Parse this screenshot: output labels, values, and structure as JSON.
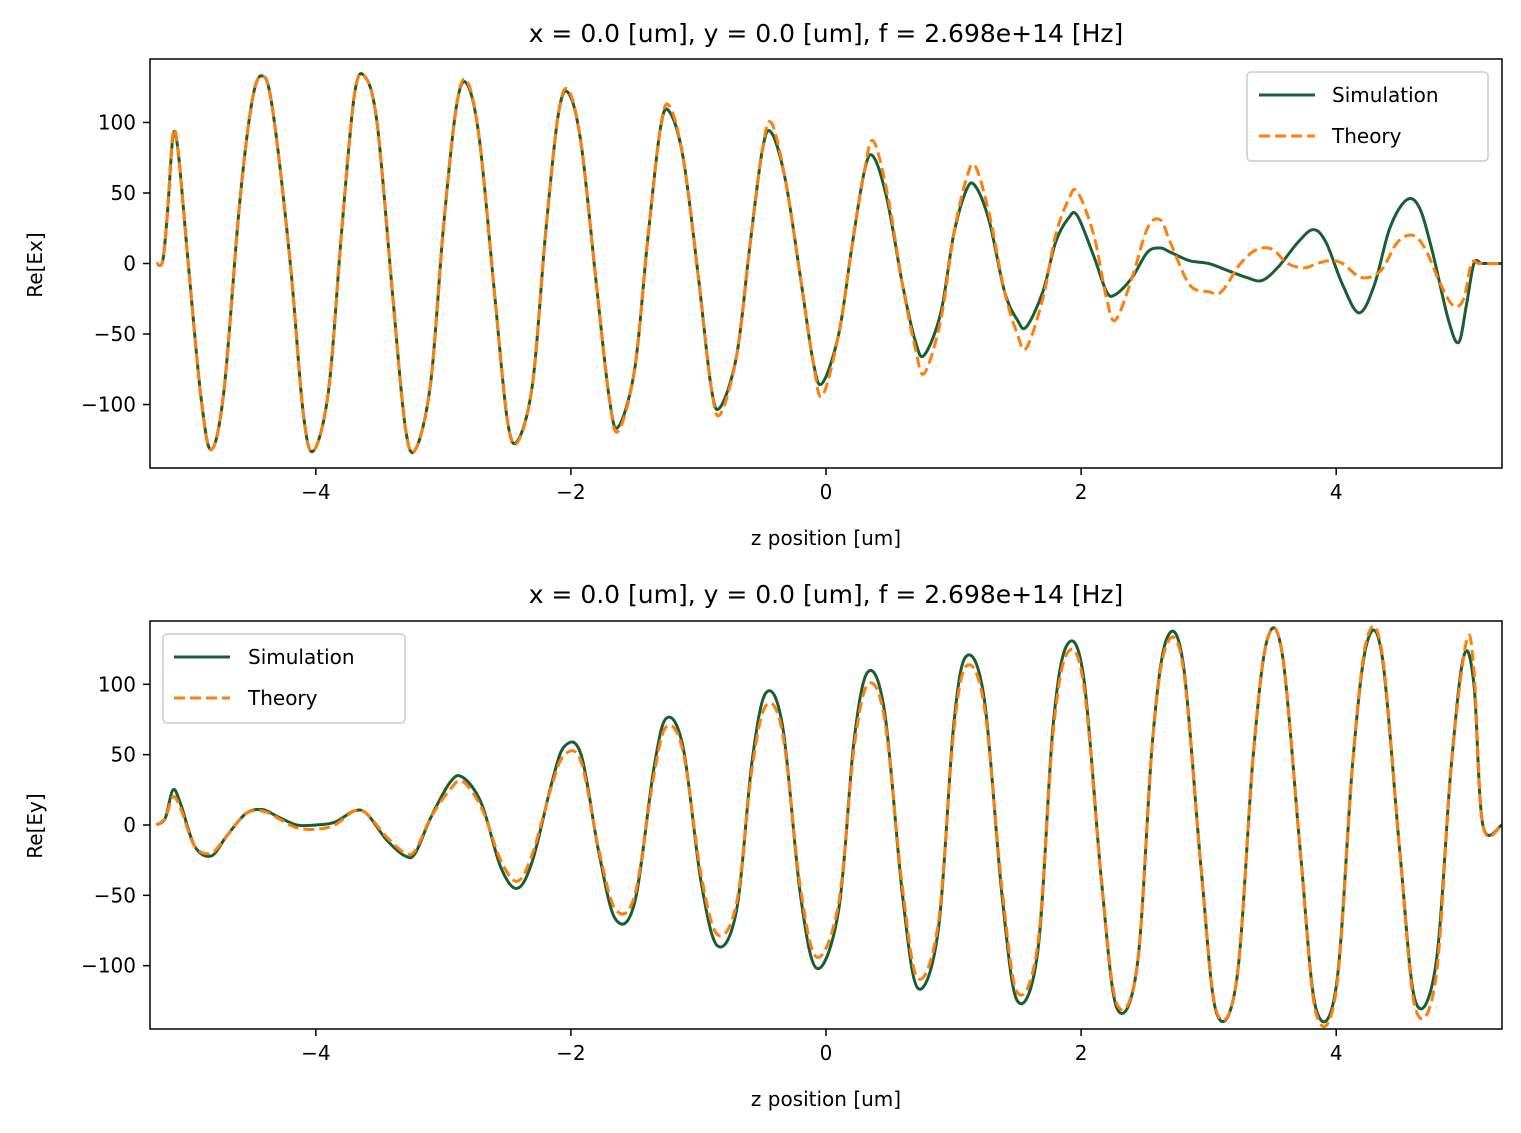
{
  "colors": {
    "simulation": "#1b5e33",
    "theory": "#ff7f0e",
    "axes": "#000000",
    "legend_border": "#cccccc"
  },
  "chart_data": [
    {
      "type": "line",
      "title": "x = 0.0 [um], y = 0.0 [um], f = 2.698e+14 [Hz]",
      "xlabel": "z position [um]",
      "ylabel": "Re[Ex]",
      "xlim": [
        -5.3,
        5.3
      ],
      "ylim": [
        -145,
        145
      ],
      "xticks": [
        -4,
        -2,
        0,
        2,
        4
      ],
      "xtick_labels": [
        "−4",
        "−2",
        "0",
        "2",
        "4"
      ],
      "yticks": [
        -100,
        -50,
        0,
        50,
        100
      ],
      "ytick_labels": [
        "−100",
        "−50",
        "0",
        "50",
        "100"
      ],
      "grid": false,
      "legend": "top-right",
      "series": [
        {
          "name": "Simulation",
          "style": "solid",
          "x": [
            -5.25,
            -5.2,
            -5.16,
            -5.12,
            -5.08,
            -5.0,
            -4.9,
            -4.82,
            -4.72,
            -4.6,
            -4.5,
            -4.42,
            -4.34,
            -4.2,
            -4.1,
            -4.02,
            -3.9,
            -3.8,
            -3.7,
            -3.62,
            -3.52,
            -3.4,
            -3.3,
            -3.22,
            -3.1,
            -3.0,
            -2.9,
            -2.82,
            -2.72,
            -2.6,
            -2.5,
            -2.42,
            -2.3,
            -2.2,
            -2.1,
            -2.02,
            -1.92,
            -1.8,
            -1.7,
            -1.63,
            -1.5,
            -1.4,
            -1.3,
            -1.23,
            -1.12,
            -1.0,
            -0.9,
            -0.83,
            -0.7,
            -0.6,
            -0.5,
            -0.43,
            -0.32,
            -0.2,
            -0.1,
            -0.03,
            0.1,
            0.2,
            0.3,
            0.37,
            0.48,
            0.6,
            0.7,
            0.77,
            0.9,
            1.0,
            1.1,
            1.17,
            1.28,
            1.4,
            1.5,
            1.57,
            1.7,
            1.8,
            1.9,
            1.97,
            2.1,
            2.2,
            2.27,
            2.4,
            2.52,
            2.62,
            2.7,
            2.85,
            3.0,
            3.15,
            3.3,
            3.42,
            3.55,
            3.7,
            3.82,
            3.92,
            4.05,
            4.18,
            4.3,
            4.42,
            4.55,
            4.65,
            4.75,
            4.88,
            4.96,
            5.02,
            5.08,
            5.14,
            5.2,
            5.3
          ],
          "y": [
            0,
            2,
            40,
            90,
            80,
            0,
            -95,
            -132,
            -90,
            40,
            115,
            133,
            110,
            0,
            -105,
            -133,
            -90,
            20,
            118,
            133,
            100,
            -20,
            -115,
            -132,
            -85,
            25,
            110,
            128,
            90,
            -20,
            -110,
            -126,
            -85,
            20,
            105,
            121,
            85,
            -15,
            -95,
            -116,
            -75,
            15,
            95,
            108,
            75,
            -10,
            -88,
            -102,
            -65,
            10,
            80,
            93,
            60,
            -10,
            -70,
            -85,
            -50,
            10,
            65,
            76,
            45,
            -15,
            -55,
            -65,
            -35,
            20,
            52,
            55,
            30,
            -20,
            -40,
            -45,
            -20,
            15,
            32,
            34,
            5,
            -20,
            -22,
            -10,
            8,
            11,
            8,
            2,
            0,
            -5,
            -10,
            -12,
            -2,
            15,
            24,
            15,
            -15,
            -35,
            -15,
            25,
            45,
            40,
            10,
            -40,
            -56,
            -30,
            0,
            0,
            0,
            0
          ]
        },
        {
          "name": "Theory",
          "style": "dashed",
          "x": [
            -5.25,
            -5.2,
            -5.16,
            -5.12,
            -5.08,
            -5.0,
            -4.9,
            -4.82,
            -4.72,
            -4.6,
            -4.5,
            -4.42,
            -4.34,
            -4.2,
            -4.1,
            -4.02,
            -3.9,
            -3.8,
            -3.7,
            -3.62,
            -3.52,
            -3.4,
            -3.3,
            -3.22,
            -3.1,
            -3.0,
            -2.9,
            -2.82,
            -2.72,
            -2.6,
            -2.5,
            -2.42,
            -2.3,
            -2.2,
            -2.1,
            -2.02,
            -1.92,
            -1.8,
            -1.7,
            -1.63,
            -1.5,
            -1.4,
            -1.3,
            -1.23,
            -1.12,
            -1.0,
            -0.9,
            -0.83,
            -0.7,
            -0.6,
            -0.5,
            -0.43,
            -0.32,
            -0.2,
            -0.1,
            -0.03,
            0.1,
            0.2,
            0.3,
            0.37,
            0.48,
            0.6,
            0.7,
            0.77,
            0.9,
            1.0,
            1.1,
            1.17,
            1.28,
            1.4,
            1.5,
            1.57,
            1.7,
            1.8,
            1.9,
            1.97,
            2.1,
            2.2,
            2.27,
            2.4,
            2.52,
            2.62,
            2.7,
            2.85,
            3.0,
            3.1,
            3.25,
            3.38,
            3.5,
            3.62,
            3.75,
            3.85,
            3.95,
            4.05,
            4.2,
            4.35,
            4.48,
            4.6,
            4.7,
            4.82,
            4.92,
            5.0,
            5.06,
            5.12,
            5.2,
            5.3
          ],
          "y": [
            0,
            2,
            40,
            92,
            80,
            0,
            -95,
            -132,
            -90,
            40,
            115,
            133,
            110,
            0,
            -105,
            -133,
            -90,
            20,
            118,
            133,
            100,
            -20,
            -115,
            -132,
            -85,
            25,
            110,
            130,
            90,
            -20,
            -110,
            -127,
            -85,
            20,
            105,
            123,
            85,
            -15,
            -95,
            -119,
            -75,
            15,
            95,
            112,
            75,
            -10,
            -88,
            -107,
            -65,
            10,
            80,
            100,
            60,
            -10,
            -70,
            -94,
            -50,
            10,
            65,
            87,
            50,
            -15,
            -60,
            -78,
            -40,
            20,
            60,
            69,
            35,
            -20,
            -50,
            -60,
            -25,
            20,
            45,
            51,
            20,
            -25,
            -40,
            -10,
            25,
            31,
            15,
            -15,
            -20,
            -20,
            0,
            10,
            10,
            0,
            -3,
            0,
            2,
            0,
            -10,
            -5,
            15,
            20,
            10,
            -15,
            -30,
            -25,
            0,
            0,
            0,
            0
          ]
        }
      ]
    },
    {
      "type": "line",
      "title": "x = 0.0 [um], y = 0.0 [um], f = 2.698e+14 [Hz]",
      "xlabel": "z position [um]",
      "ylabel": "Re[Ey]",
      "xlim": [
        -5.3,
        5.3
      ],
      "ylim": [
        -145,
        145
      ],
      "xticks": [
        -4,
        -2,
        0,
        2,
        4
      ],
      "xtick_labels": [
        "−4",
        "−2",
        "0",
        "2",
        "4"
      ],
      "yticks": [
        -100,
        -50,
        0,
        50,
        100
      ],
      "ytick_labels": [
        "−100",
        "−50",
        "0",
        "50",
        "100"
      ],
      "grid": false,
      "legend": "top-left",
      "series": [
        {
          "name": "Simulation",
          "style": "solid",
          "x": [
            -5.25,
            -5.18,
            -5.12,
            -5.06,
            -4.95,
            -4.82,
            -4.7,
            -4.55,
            -4.42,
            -4.3,
            -4.15,
            -4.0,
            -3.85,
            -3.7,
            -3.6,
            -3.45,
            -3.3,
            -3.22,
            -3.1,
            -2.95,
            -2.85,
            -2.7,
            -2.55,
            -2.42,
            -2.3,
            -2.15,
            -2.05,
            -1.92,
            -1.78,
            -1.65,
            -1.5,
            -1.35,
            -1.25,
            -1.12,
            -0.98,
            -0.85,
            -0.7,
            -0.58,
            -0.47,
            -0.34,
            -0.2,
            -0.07,
            0.1,
            0.22,
            0.33,
            0.46,
            0.6,
            0.72,
            0.88,
            1.0,
            1.1,
            1.24,
            1.38,
            1.5,
            1.66,
            1.78,
            1.89,
            2.02,
            2.16,
            2.28,
            2.44,
            2.56,
            2.67,
            2.8,
            2.94,
            3.06,
            3.22,
            3.35,
            3.46,
            3.58,
            3.72,
            3.84,
            4.0,
            4.13,
            4.24,
            4.36,
            4.5,
            4.62,
            4.78,
            4.9,
            5.0,
            5.08,
            5.15,
            5.3
          ],
          "y": [
            0,
            5,
            25,
            15,
            -15,
            -22,
            -8,
            8,
            11,
            6,
            0,
            0,
            2,
            10,
            8,
            -10,
            -22,
            -20,
            5,
            30,
            34,
            15,
            -30,
            -45,
            -25,
            30,
            56,
            50,
            -20,
            -67,
            -55,
            40,
            76,
            55,
            -40,
            -86,
            -60,
            45,
            94,
            70,
            -50,
            -102,
            -60,
            60,
            109,
            80,
            -50,
            -116,
            -75,
            70,
            120,
            90,
            -50,
            -125,
            -90,
            70,
            128,
            105,
            -40,
            -130,
            -100,
            60,
            132,
            115,
            -30,
            -133,
            -110,
            50,
            132,
            120,
            -20,
            -130,
            -115,
            45,
            129,
            120,
            -20,
            -125,
            -100,
            40,
            120,
            100,
            0,
            0
          ]
        },
        {
          "name": "Theory",
          "style": "dashed",
          "x": [
            -5.25,
            -5.18,
            -5.12,
            -5.06,
            -4.95,
            -4.82,
            -4.7,
            -4.55,
            -4.42,
            -4.3,
            -4.15,
            -4.0,
            -3.85,
            -3.7,
            -3.6,
            -3.45,
            -3.3,
            -3.22,
            -3.1,
            -2.95,
            -2.85,
            -2.7,
            -2.55,
            -2.42,
            -2.3,
            -2.15,
            -2.05,
            -1.92,
            -1.78,
            -1.65,
            -1.5,
            -1.35,
            -1.25,
            -1.12,
            -0.98,
            -0.85,
            -0.7,
            -0.58,
            -0.47,
            -0.34,
            -0.2,
            -0.07,
            0.1,
            0.22,
            0.33,
            0.46,
            0.6,
            0.72,
            0.88,
            1.0,
            1.1,
            1.24,
            1.38,
            1.5,
            1.66,
            1.78,
            1.89,
            2.02,
            2.16,
            2.28,
            2.44,
            2.56,
            2.67,
            2.8,
            2.94,
            3.06,
            3.22,
            3.35,
            3.46,
            3.58,
            3.72,
            3.84,
            4.0,
            4.13,
            4.24,
            4.36,
            4.5,
            4.62,
            4.78,
            4.9,
            5.02,
            5.08,
            5.15,
            5.3
          ],
          "y": [
            0,
            5,
            20,
            12,
            -15,
            -20,
            -8,
            8,
            10,
            5,
            -2,
            -3,
            0,
            10,
            8,
            -8,
            -20,
            -18,
            5,
            25,
            31,
            12,
            -25,
            -40,
            -20,
            28,
            50,
            45,
            -18,
            -60,
            -50,
            35,
            70,
            52,
            -35,
            -78,
            -55,
            40,
            85,
            65,
            -45,
            -94,
            -55,
            55,
            100,
            75,
            -45,
            -109,
            -70,
            65,
            113,
            85,
            -45,
            -119,
            -85,
            65,
            122,
            100,
            -40,
            -127,
            -100,
            60,
            128,
            112,
            -30,
            -132,
            -110,
            50,
            132,
            120,
            -20,
            -133,
            -118,
            45,
            132,
            122,
            -20,
            -130,
            -110,
            40,
            130,
            110,
            0,
            0
          ]
        }
      ]
    }
  ]
}
